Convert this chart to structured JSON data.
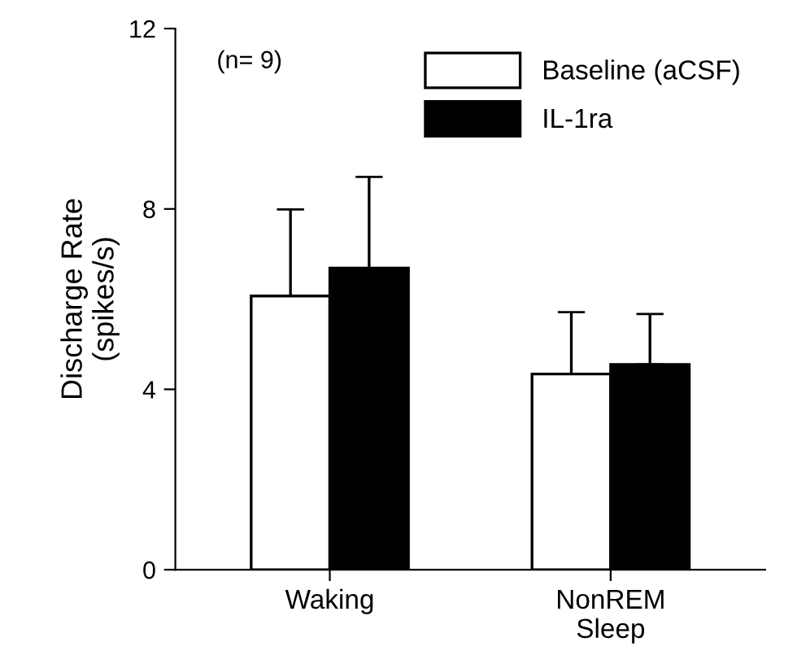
{
  "chart_data": {
    "type": "bar",
    "ylabel": "Discharge Rate\n(spikes/s)",
    "categories": [
      "Waking",
      "NonREM\nSleep"
    ],
    "series": [
      {
        "name": "Baseline (aCSF)",
        "color": "#ffffff",
        "values": [
          6.07,
          4.34
        ],
        "errors": [
          [
            6.07,
            7.99
          ],
          [
            4.34,
            5.71
          ]
        ]
      },
      {
        "name": "IL-1ra",
        "color": "#000000",
        "values": [
          6.69,
          4.55
        ],
        "errors": [
          [
            6.69,
            8.71
          ],
          [
            4.55,
            5.67
          ]
        ]
      }
    ],
    "ylim": [
      0,
      12
    ],
    "yticks": [
      0,
      4,
      8,
      12
    ],
    "grid": false,
    "legend": "top right",
    "annotations": [
      "(n= 9)"
    ]
  }
}
